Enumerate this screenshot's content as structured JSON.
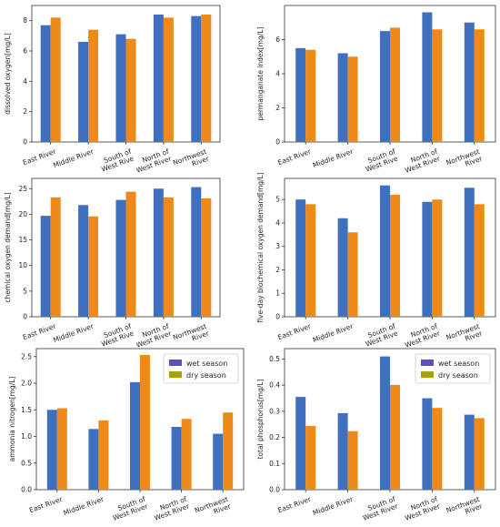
{
  "chart_data": [
    {
      "type": "bar",
      "categories": [
        [
          "East River"
        ],
        [
          "Middle River"
        ],
        [
          "South of",
          "West Rive"
        ],
        [
          "North of",
          "West River"
        ],
        [
          "Northwest",
          "River"
        ]
      ],
      "ylabel": "dissolved oxygen[mg/L]",
      "ylim": [
        0,
        9
      ],
      "yticks": [
        0,
        2,
        4,
        6,
        8
      ],
      "series": [
        {
          "values": [
            7.7,
            6.6,
            7.1,
            8.4,
            8.3
          ]
        },
        {
          "values": [
            8.2,
            7.4,
            6.8,
            8.2,
            8.4
          ]
        }
      ],
      "legend": false
    },
    {
      "type": "bar",
      "categories": [
        [
          "East River"
        ],
        [
          "Middle River"
        ],
        [
          "South of",
          "West Rive"
        ],
        [
          "North of",
          "West River"
        ],
        [
          "Northwest",
          "River"
        ]
      ],
      "ylabel": "permanganate index[mg/L]",
      "ylim": [
        0,
        8
      ],
      "yticks": [
        0,
        2,
        4,
        6
      ],
      "series": [
        {
          "values": [
            5.5,
            5.2,
            6.5,
            7.6,
            7.0
          ]
        },
        {
          "values": [
            5.4,
            5.0,
            6.7,
            6.6,
            6.6
          ]
        }
      ],
      "legend": false
    },
    {
      "type": "bar",
      "categories": [
        [
          "East River"
        ],
        [
          "Middle River"
        ],
        [
          "South of",
          "West Rive"
        ],
        [
          "North of",
          "West River"
        ],
        [
          "Northwest",
          "River"
        ]
      ],
      "ylabel": "chemical oxygen demand[mg/L]",
      "ylim": [
        0,
        27
      ],
      "yticks": [
        0,
        5,
        10,
        15,
        20,
        25
      ],
      "series": [
        {
          "values": [
            19.7,
            21.8,
            22.8,
            25.0,
            25.3
          ]
        },
        {
          "values": [
            23.3,
            19.6,
            24.4,
            23.3,
            23.1
          ]
        }
      ],
      "legend": false
    },
    {
      "type": "bar",
      "categories": [
        [
          "East River"
        ],
        [
          "Middle River"
        ],
        [
          "South of",
          "West Rive"
        ],
        [
          "North of",
          "West River"
        ],
        [
          "Northwest",
          "River"
        ]
      ],
      "ylabel": "five-day biochemical oxygen demand[mg/L]",
      "ylim": [
        0,
        5.9
      ],
      "yticks": [
        0,
        1,
        2,
        3,
        4,
        5
      ],
      "series": [
        {
          "values": [
            5.0,
            4.2,
            5.6,
            4.9,
            5.5
          ]
        },
        {
          "values": [
            4.8,
            3.6,
            5.2,
            5.0,
            4.8
          ]
        }
      ],
      "legend": false
    },
    {
      "type": "bar",
      "categories": [
        [
          "East River"
        ],
        [
          "Middle River"
        ],
        [
          "South of",
          "West River"
        ],
        [
          "North of",
          "West River"
        ],
        [
          "Northwest",
          "River"
        ]
      ],
      "ylabel": "ammonia nitrogen[mg/L]",
      "ylim": [
        0,
        2.65
      ],
      "yticks": [
        0.0,
        0.5,
        1.0,
        1.5,
        2.0,
        2.5
      ],
      "series": [
        {
          "name": "wet season",
          "values": [
            1.5,
            1.14,
            2.02,
            1.18,
            1.05
          ]
        },
        {
          "name": "dry season",
          "values": [
            1.53,
            1.3,
            2.53,
            1.33,
            1.45
          ]
        }
      ],
      "legend": true
    },
    {
      "type": "bar",
      "categories": [
        [
          "East River"
        ],
        [
          "Middle River"
        ],
        [
          "South of",
          "West River"
        ],
        [
          "North of",
          "West River"
        ],
        [
          "Northwest",
          "River"
        ]
      ],
      "ylabel": "total phosphorus[mg/L]",
      "ylim": [
        0,
        0.54
      ],
      "yticks": [
        0.0,
        0.1,
        0.2,
        0.3,
        0.4,
        0.5
      ],
      "series": [
        {
          "name": "wet season",
          "values": [
            0.355,
            0.293,
            0.51,
            0.35,
            0.287
          ]
        },
        {
          "name": "dry season",
          "values": [
            0.244,
            0.224,
            0.401,
            0.313,
            0.274
          ]
        }
      ],
      "legend": true
    }
  ],
  "colors": {
    "bar_blue": "#3f6fbf",
    "bar_orange": "#ee8a1a",
    "legend_wet": "#5a4fc4",
    "legend_dry": "#a6a20a"
  }
}
